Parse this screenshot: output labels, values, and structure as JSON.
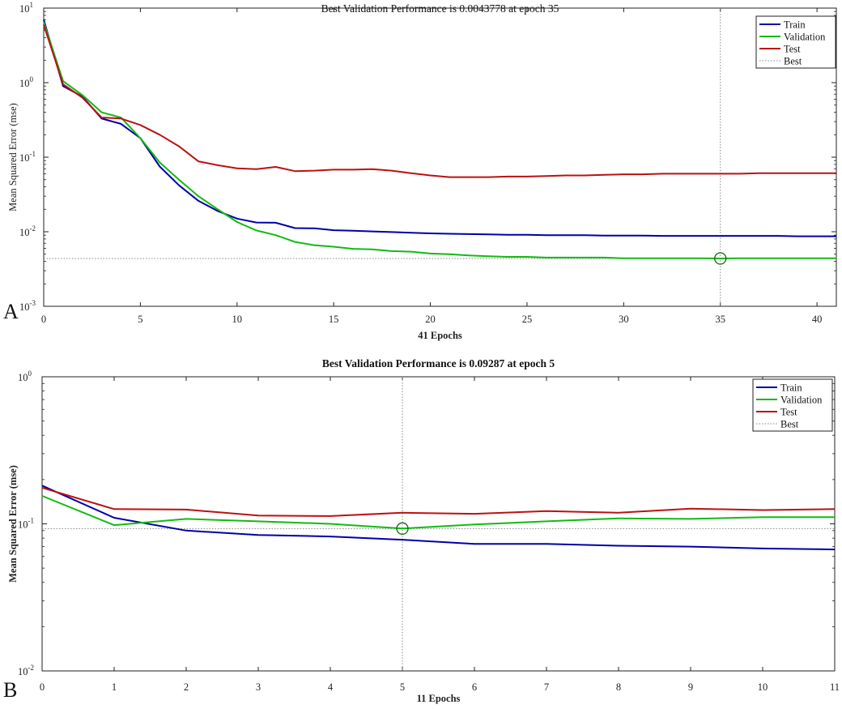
{
  "figure": {
    "panel_a_letter": "A",
    "panel_b_letter": "B"
  },
  "chart_data": [
    {
      "type": "line",
      "panel": "A",
      "title": "Best Validation Performance is 0.0043778 at epoch 35",
      "xlabel": "41 Epochs",
      "ylabel": "Mean Squared Error  (mse)",
      "yscale": "log",
      "xlim": [
        0,
        41
      ],
      "ylim": [
        0.001,
        10
      ],
      "xticks": [
        0,
        5,
        10,
        15,
        20,
        25,
        30,
        35,
        40
      ],
      "yticks": [
        {
          "base": "10",
          "exp": "-3",
          "value": 0.001
        },
        {
          "base": "10",
          "exp": "-2",
          "value": 0.01
        },
        {
          "base": "10",
          "exp": "-1",
          "value": 0.1
        },
        {
          "base": "10",
          "exp": "0",
          "value": 1
        },
        {
          "base": "10",
          "exp": "1",
          "value": 10
        }
      ],
      "legend_position": "top-right",
      "grid": false,
      "x": [
        0,
        1,
        2,
        3,
        4,
        5,
        6,
        7,
        8,
        9,
        10,
        11,
        12,
        13,
        14,
        15,
        16,
        17,
        18,
        19,
        20,
        21,
        22,
        23,
        24,
        25,
        26,
        27,
        28,
        29,
        30,
        31,
        32,
        33,
        34,
        35,
        36,
        37,
        38,
        39,
        40,
        41
      ],
      "series": [
        {
          "name": "Train",
          "color": "#0000a8",
          "values": [
            7,
            0.9,
            0.65,
            0.33,
            0.28,
            0.18,
            0.075,
            0.042,
            0.026,
            0.019,
            0.015,
            0.0133,
            0.0132,
            0.0112,
            0.0111,
            0.0105,
            0.0103,
            0.0101,
            0.0099,
            0.0097,
            0.0095,
            0.0094,
            0.0093,
            0.0092,
            0.0091,
            0.0091,
            0.009,
            0.009,
            0.009,
            0.0089,
            0.0089,
            0.0089,
            0.0088,
            0.0088,
            0.0088,
            0.0088,
            0.0088,
            0.0088,
            0.0088,
            0.0087,
            0.0087,
            0.0087
          ]
        },
        {
          "name": "Validation",
          "color": "#11bb11",
          "values": [
            6.5,
            1.05,
            0.68,
            0.4,
            0.34,
            0.18,
            0.085,
            0.05,
            0.03,
            0.02,
            0.0135,
            0.0104,
            0.009,
            0.0073,
            0.0066,
            0.0063,
            0.0059,
            0.0058,
            0.0055,
            0.0054,
            0.0051,
            0.005,
            0.0048,
            0.0047,
            0.0046,
            0.0046,
            0.0045,
            0.0045,
            0.0045,
            0.0045,
            0.0044,
            0.0044,
            0.0044,
            0.0044,
            0.0044,
            0.0043778,
            0.0044,
            0.0044,
            0.0044,
            0.0044,
            0.0044,
            0.0044
          ]
        },
        {
          "name": "Test",
          "color": "#bb1111",
          "values": [
            6,
            0.95,
            0.63,
            0.34,
            0.33,
            0.27,
            0.2,
            0.14,
            0.088,
            0.078,
            0.071,
            0.069,
            0.074,
            0.065,
            0.066,
            0.068,
            0.068,
            0.069,
            0.066,
            0.061,
            0.057,
            0.054,
            0.054,
            0.054,
            0.055,
            0.055,
            0.056,
            0.057,
            0.057,
            0.058,
            0.059,
            0.059,
            0.06,
            0.06,
            0.06,
            0.06,
            0.06,
            0.061,
            0.061,
            0.061,
            0.061,
            0.061
          ]
        }
      ],
      "best": {
        "name": "Best",
        "color": "#888888",
        "epoch": 35,
        "value": 0.0043778
      }
    },
    {
      "type": "line",
      "panel": "B",
      "title": "Best Validation Performance is 0.09287 at epoch 5",
      "xlabel": "11 Epochs",
      "ylabel": "Mean Squared Error  (mse)",
      "yscale": "log",
      "xlim": [
        0,
        11
      ],
      "ylim": [
        0.01,
        1
      ],
      "xticks": [
        0,
        1,
        2,
        3,
        4,
        5,
        6,
        7,
        8,
        9,
        10,
        11
      ],
      "yticks": [
        {
          "base": "10",
          "exp": "-2",
          "value": 0.01
        },
        {
          "base": "10",
          "exp": "-1",
          "value": 0.1
        },
        {
          "base": "10",
          "exp": "0",
          "value": 1
        }
      ],
      "legend_position": "top-right",
      "grid": false,
      "x": [
        0,
        1,
        2,
        3,
        4,
        5,
        6,
        7,
        8,
        9,
        10,
        11
      ],
      "series": [
        {
          "name": "Train",
          "color": "#0000a8",
          "values": [
            0.182,
            0.11,
            0.09,
            0.084,
            0.082,
            0.078,
            0.073,
            0.073,
            0.071,
            0.07,
            0.068,
            0.067
          ]
        },
        {
          "name": "Validation",
          "color": "#11bb11",
          "values": [
            0.155,
            0.098,
            0.108,
            0.104,
            0.1,
            0.09287,
            0.099,
            0.104,
            0.109,
            0.108,
            0.111,
            0.111
          ]
        },
        {
          "name": "Test",
          "color": "#bb1111",
          "values": [
            0.176,
            0.126,
            0.125,
            0.114,
            0.113,
            0.119,
            0.117,
            0.122,
            0.119,
            0.127,
            0.124,
            0.126
          ]
        }
      ],
      "best": {
        "name": "Best",
        "color": "#888888",
        "epoch": 5,
        "value": 0.09287
      }
    }
  ]
}
